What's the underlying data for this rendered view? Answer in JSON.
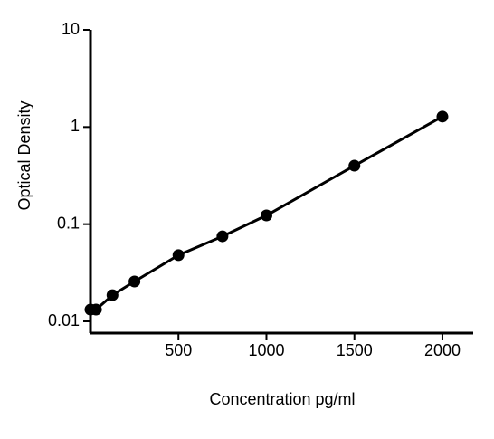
{
  "chart_data": {
    "type": "line",
    "x_label": "Concentration pg/ml",
    "y_label": "Optical Density",
    "x": [
      0,
      31.25,
      125,
      250,
      500,
      750,
      1000,
      1500,
      2000
    ],
    "series": [
      {
        "color": "#000000",
        "values": [
          0.0132,
          0.0132,
          0.0186,
          0.0257,
          0.048,
          0.075,
          0.123,
          0.4,
          1.28
        ]
      }
    ],
    "xlim": [
      0,
      2175
    ],
    "xticks": [
      500,
      1000,
      1500,
      2000
    ],
    "ylim": [
      0.01,
      10
    ],
    "yticks": [
      0.01,
      0.1,
      1,
      10
    ],
    "y_scale": "log"
  }
}
